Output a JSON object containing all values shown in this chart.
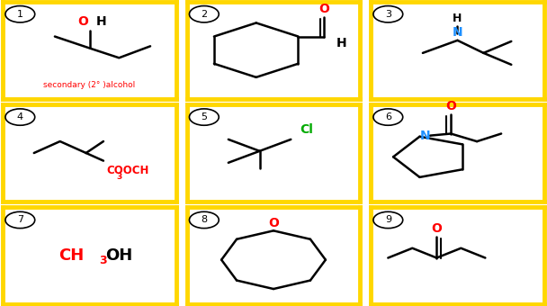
{
  "background_color": "#ffffff",
  "border_color": "#FFD700",
  "line_color": "#000000",
  "red": "#FF0000",
  "blue": "#1E90FF",
  "green": "#00AA00",
  "lw": 1.8,
  "card1_label": "secondary (2° )alcohol",
  "card7_formula_red": "CH",
  "card7_sub": "3",
  "card7_black": "OH"
}
